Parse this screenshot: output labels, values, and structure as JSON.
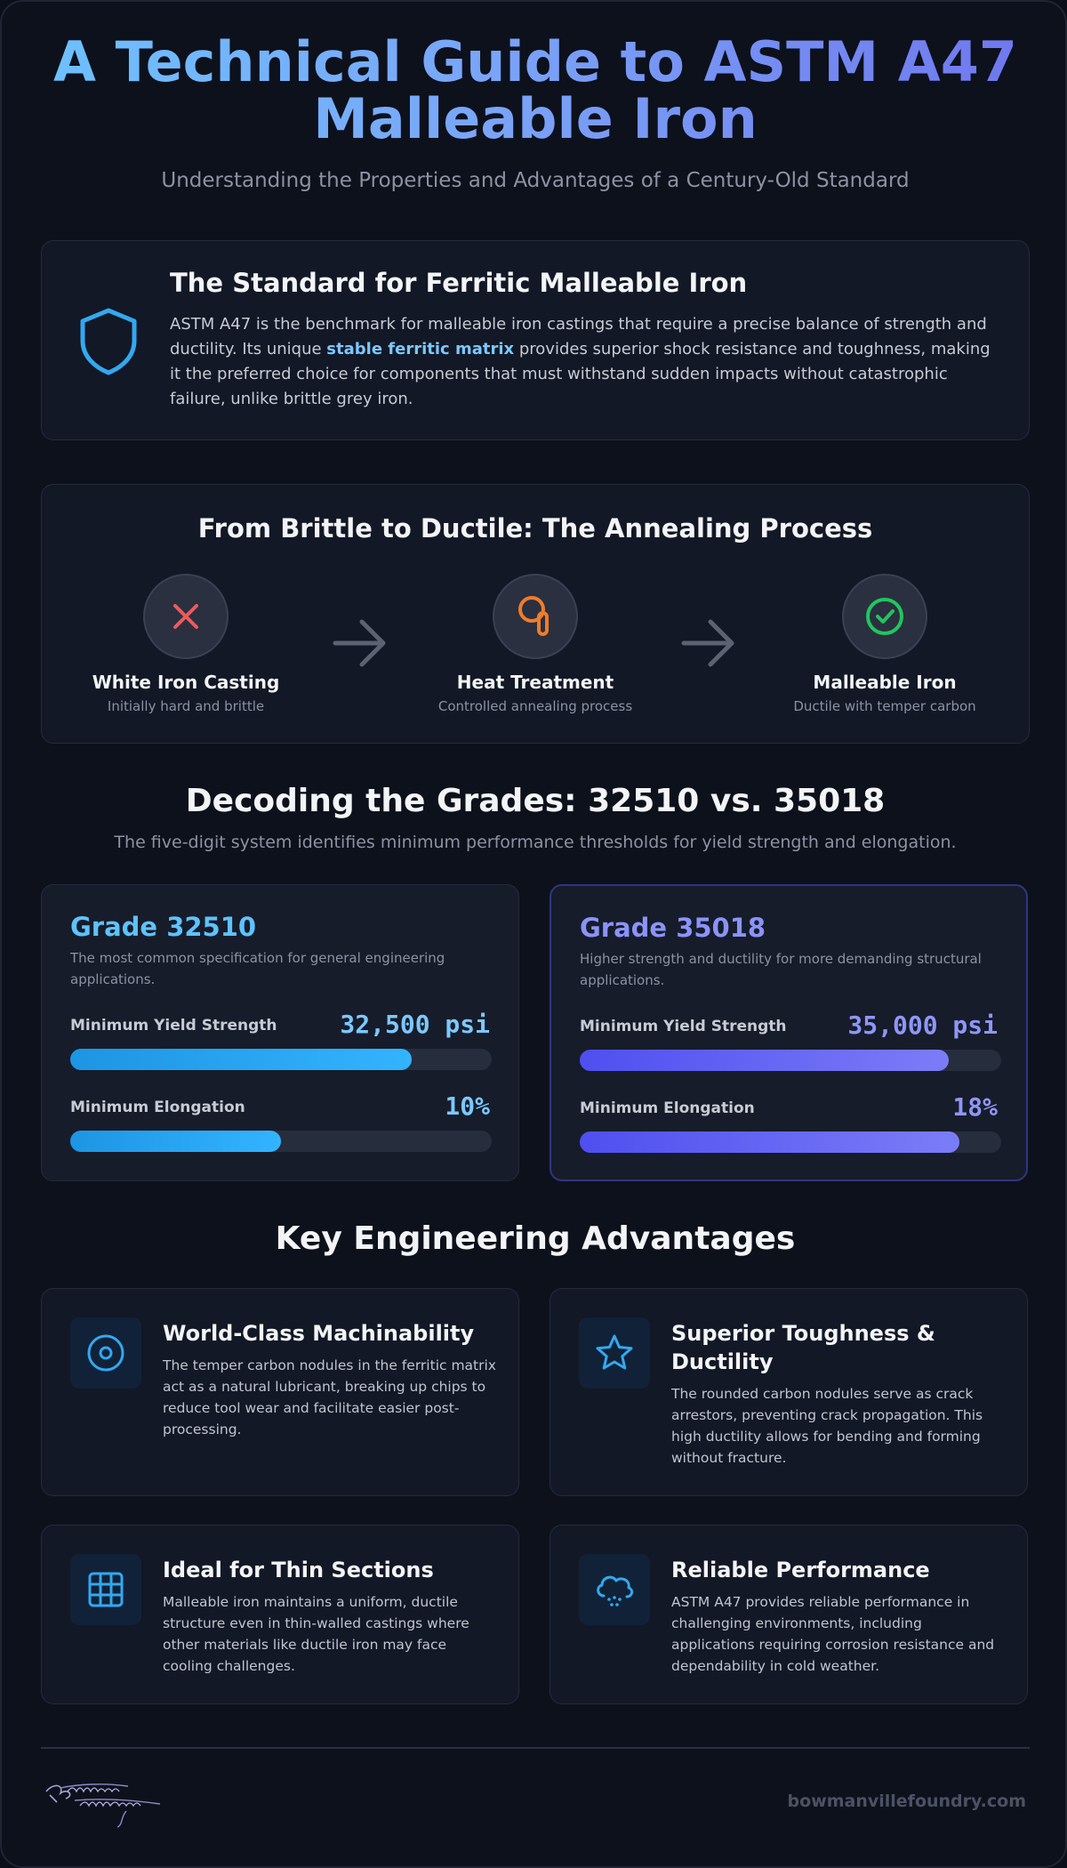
{
  "header": {
    "title": "A Technical Guide to ASTM A47 Malleable Iron",
    "subtitle": "Understanding the Properties and Advantages of a Century-Old Standard"
  },
  "intro": {
    "title": "The Standard for Ferritic Malleable Iron",
    "text_before": "ASTM A47 is the benchmark for malleable iron castings that require a precise balance of strength and ductility. Its unique ",
    "highlight": "stable ferritic matrix",
    "text_after": " provides superior shock resistance and toughness, making it the preferred choice for components that must withstand sudden impacts without catastrophic failure, unlike brittle grey iron.",
    "icon": "shield-icon"
  },
  "process": {
    "title": "From Brittle to Ductile: The Annealing Process",
    "steps": [
      {
        "title": "White Iron Casting",
        "desc": "Initially hard and brittle",
        "icon": "x-icon",
        "color": "#ef4444"
      },
      {
        "title": "Heat Treatment",
        "desc": "Controlled annealing process",
        "icon": "fire-icon",
        "color": "#f97316"
      },
      {
        "title": "Malleable Iron",
        "desc": "Ductile with temper carbon",
        "icon": "check-circle-icon",
        "color": "#22c55e"
      }
    ]
  },
  "grades": {
    "title": "Decoding the Grades: 32510 vs. 35018",
    "subtitle": "The five-digit system identifies minimum performance thresholds for yield strength and elongation.",
    "items": [
      {
        "name": "Grade 32510",
        "desc": "The most common specification for general engineering applications.",
        "yield_label": "Minimum Yield Strength",
        "yield_value": "32,500 psi",
        "yield_fill": 0.81,
        "elong_label": "Minimum Elongation",
        "elong_value": "10%",
        "elong_fill": 0.5
      },
      {
        "name": "Grade 35018",
        "desc": "Higher strength and ductility for more demanding structural applications.",
        "yield_label": "Minimum Yield Strength",
        "yield_value": "35,000 psi",
        "yield_fill": 0.875,
        "elong_label": "Minimum Elongation",
        "elong_value": "18%",
        "elong_fill": 0.9
      }
    ]
  },
  "advantages": {
    "title": "Key Engineering Advantages",
    "items": [
      {
        "title": "World-Class Machinability",
        "text": "The temper carbon nodules in the ferritic matrix act as a natural lubricant, breaking up chips to reduce tool wear and facilitate easier post-processing.",
        "icon": "target-icon"
      },
      {
        "title": "Superior Toughness & Ductility",
        "text": "The rounded carbon nodules serve as crack arrestors, preventing crack propagation. This high ductility allows for bending and forming without fracture.",
        "icon": "star-icon"
      },
      {
        "title": "Ideal for Thin Sections",
        "text": "Malleable iron maintains a uniform, ductile structure even in thin-walled castings where other materials like ductile iron may face cooling challenges.",
        "icon": "grid-icon"
      },
      {
        "title": "Reliable Performance",
        "text": "ASTM A47 provides reliable performance in challenging environments, including applications requiring corrosion resistance and dependability in cold weather.",
        "icon": "cloud-snow-icon"
      }
    ]
  },
  "footer": {
    "logo_text": "Bowmanville Foundry Company",
    "site": "bowmanvillefoundry.com"
  },
  "colors": {
    "accent_blue": "#5ec2ff",
    "accent_indigo": "#8b93f8",
    "background": "#0d111c"
  }
}
